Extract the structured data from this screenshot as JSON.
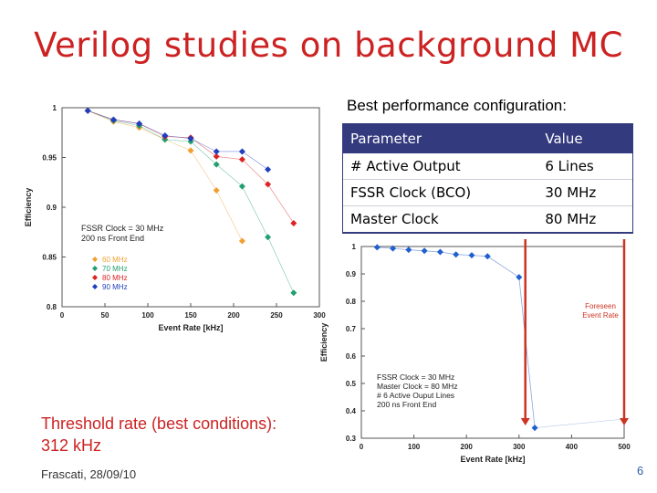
{
  "slide": {
    "title": "Verilog studies on background MC",
    "subtitle": "Best performance configuration:",
    "threshold_line1": "Threshold rate (best conditions):",
    "threshold_line2": "312 kHz",
    "footer": "Frascati,  28/09/10",
    "page_number": "6"
  },
  "table": {
    "headers": [
      "Parameter",
      "Value"
    ],
    "rows": [
      [
        "# Active Output",
        "6 Lines"
      ],
      [
        "FSSR Clock (BCO)",
        "30 MHz"
      ],
      [
        "Master Clock",
        "80 MHz"
      ]
    ]
  },
  "colors": {
    "title": "#cc2222",
    "header_bg": "#343a7e",
    "c60": "#f0a030",
    "c70": "#20a070",
    "c80": "#dd2222",
    "c90": "#1f3fbf",
    "arrow": "#cc3322"
  },
  "chart_data": [
    {
      "type": "line",
      "title": "",
      "xlabel": "Event Rate [kHz]",
      "ylabel": "Efficiency",
      "xlim": [
        0,
        300
      ],
      "ylim": [
        0.8,
        1.0
      ],
      "xticks": [
        0,
        50,
        100,
        150,
        200,
        250,
        300
      ],
      "yticks": [
        0.8,
        0.85,
        0.9,
        0.95,
        1
      ],
      "annotation": [
        "FSSR Clock = 30 MHz",
        "200 ns Front End"
      ],
      "series": [
        {
          "name": "60 MHz",
          "color": "#f0a030",
          "x": [
            30,
            60,
            90,
            120,
            150,
            180,
            210
          ],
          "y": [
            0.997,
            0.986,
            0.98,
            0.968,
            0.957,
            0.917,
            0.866
          ]
        },
        {
          "name": "70 MHz",
          "color": "#20a070",
          "x": [
            30,
            60,
            90,
            120,
            150,
            180,
            210,
            240,
            270
          ],
          "y": [
            0.997,
            0.987,
            0.982,
            0.968,
            0.966,
            0.943,
            0.921,
            0.87,
            0.814
          ]
        },
        {
          "name": "80 MHz",
          "color": "#dd2222",
          "x": [
            30,
            60,
            90,
            120,
            150,
            180,
            210,
            240,
            270
          ],
          "y": [
            0.997,
            0.988,
            0.984,
            0.971,
            0.97,
            0.951,
            0.948,
            0.923,
            0.884
          ]
        },
        {
          "name": "90 MHz",
          "color": "#1f3fbf",
          "x": [
            30,
            60,
            90,
            120,
            150,
            180,
            210,
            240
          ],
          "y": [
            0.997,
            0.988,
            0.984,
            0.972,
            0.969,
            0.956,
            0.956,
            0.938
          ]
        }
      ]
    },
    {
      "type": "line",
      "title": "",
      "xlabel": "Event Rate [kHz]",
      "ylabel": "Efficiency",
      "xlim": [
        0,
        500
      ],
      "ylim": [
        0.3,
        1.0
      ],
      "xticks": [
        0,
        100,
        200,
        300,
        400,
        500
      ],
      "yticks": [
        0.3,
        0.4,
        0.5,
        0.6,
        0.7,
        0.8,
        0.9,
        1
      ],
      "annotation": [
        "FSSR Clock = 30 MHz",
        "Master Clock = 80 MHz",
        "# 6 Active Ouput Lines",
        "200 ns Front End"
      ],
      "markers": [
        {
          "label": "Foreseen Event Rate",
          "x": 500
        },
        {
          "label": "",
          "x": 312
        }
      ],
      "series": [
        {
          "name": "efficiency",
          "color": "#1f5fcf",
          "x": [
            30,
            60,
            90,
            120,
            150,
            180,
            210,
            240,
            300,
            330
          ],
          "y": [
            0.997,
            0.993,
            0.988,
            0.984,
            0.98,
            0.971,
            0.968,
            0.964,
            0.888,
            0.338
          ]
        }
      ]
    }
  ]
}
